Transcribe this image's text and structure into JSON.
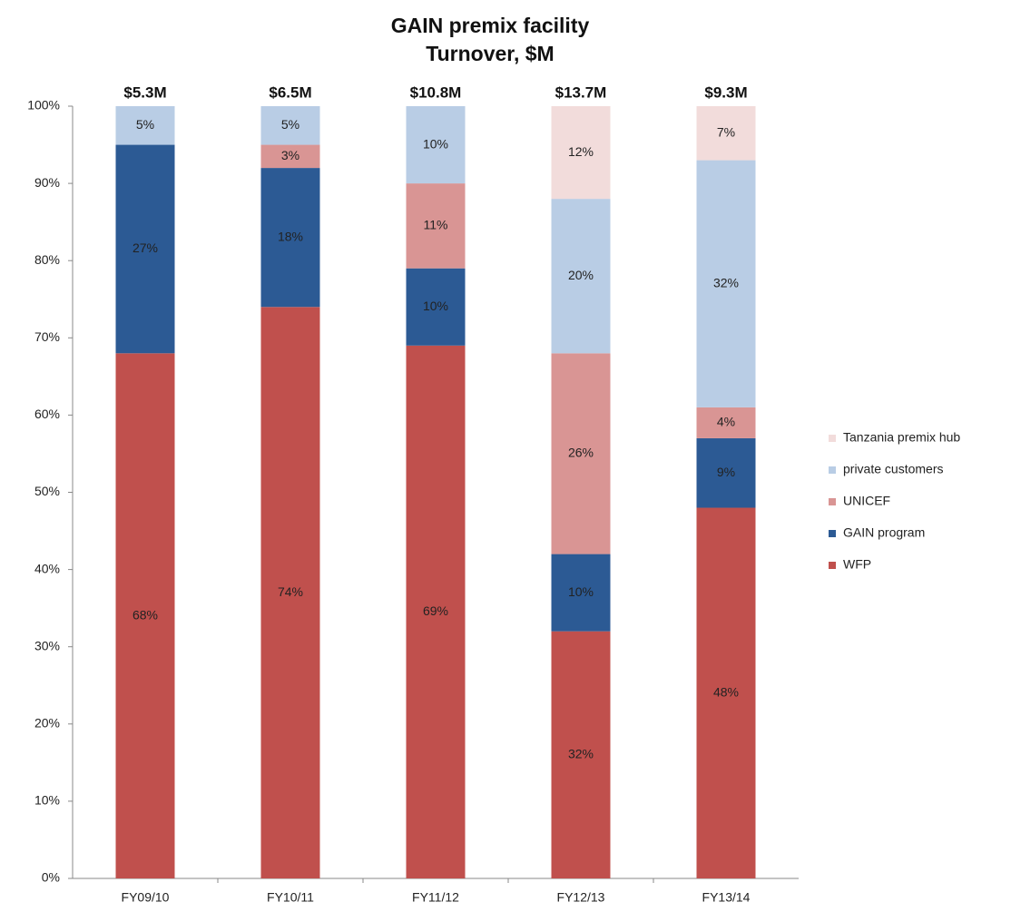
{
  "chart_data": {
    "type": "bar",
    "stacked": true,
    "title": "GAIN premix facility",
    "subtitle": "Turnover, $M",
    "categories": [
      "FY09/10",
      "FY10/11",
      "FY11/12",
      "FY12/13",
      "FY13/14"
    ],
    "series": [
      {
        "name": "WFP",
        "color": "#c0504d",
        "values": [
          68,
          74,
          69,
          32,
          48
        ],
        "value_labels": [
          "68%",
          "74%",
          "69%",
          "32%",
          "48%"
        ]
      },
      {
        "name": "GAIN program",
        "color": "#2c5a94",
        "values": [
          27,
          18,
          10,
          10,
          9
        ],
        "value_labels": [
          "27%",
          "18%",
          "10%",
          "10%",
          "9%"
        ]
      },
      {
        "name": "UNICEF",
        "color": "#d99594",
        "values": [
          null,
          3,
          11,
          26,
          4
        ],
        "value_labels": [
          null,
          "3%",
          "11%",
          "26%",
          "4%"
        ]
      },
      {
        "name": "private customers",
        "color": "#b9cde5",
        "values": [
          5,
          5,
          10,
          20,
          32
        ],
        "value_labels": [
          "5%",
          "5%",
          "10%",
          "20%",
          "32%"
        ]
      },
      {
        "name": "Tanzania premix hub",
        "color": "#f2dcdb",
        "values": [
          null,
          null,
          null,
          12,
          7
        ],
        "value_labels": [
          null,
          null,
          null,
          "12%",
          "7%"
        ]
      }
    ],
    "totals": {
      "values": [
        5.3,
        6.5,
        10.8,
        13.7,
        9.3
      ],
      "value_labels": [
        "$5.3M",
        "$6.5M",
        "$10.8M",
        "$13.7M",
        "$9.3M"
      ]
    },
    "ylim": [
      0,
      100
    ],
    "yticks": [
      {
        "value": 0,
        "label": "0%"
      },
      {
        "value": 10,
        "label": "10%"
      },
      {
        "value": 20,
        "label": "20%"
      },
      {
        "value": 30,
        "label": "30%"
      },
      {
        "value": 40,
        "label": "40%"
      },
      {
        "value": 50,
        "label": "50%"
      },
      {
        "value": 60,
        "label": "60%"
      },
      {
        "value": 70,
        "label": "70%"
      },
      {
        "value": 80,
        "label": "80%"
      },
      {
        "value": 90,
        "label": "90%"
      },
      {
        "value": 100,
        "label": "100%"
      }
    ],
    "grid": false,
    "legend": "right"
  }
}
